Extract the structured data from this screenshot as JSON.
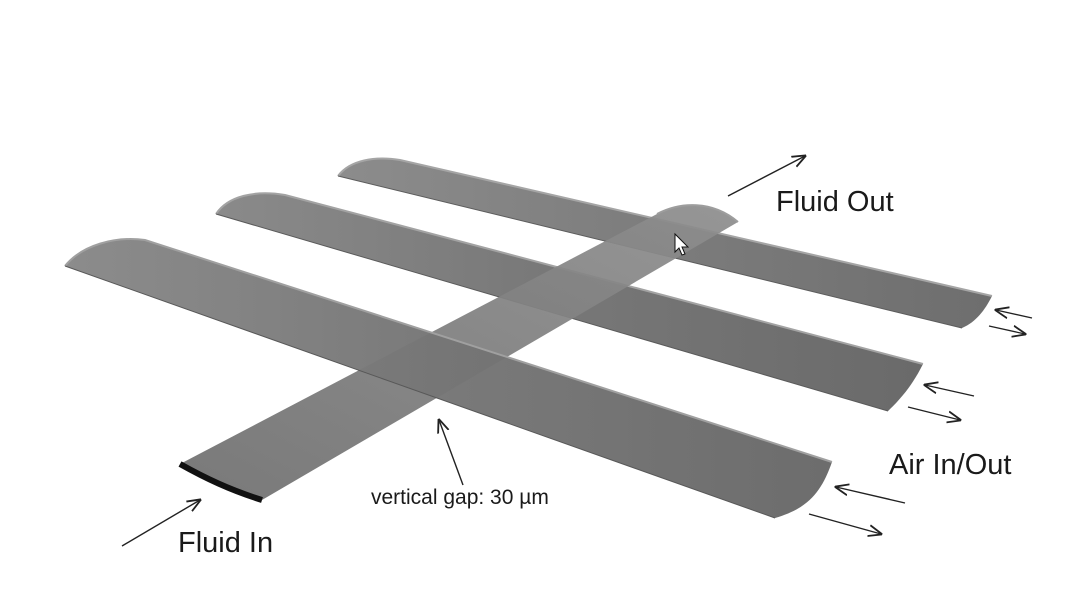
{
  "labels": {
    "fluid_out": "Fluid Out",
    "air_in_out": "Air In/Out",
    "fluid_in": "Fluid In",
    "vertical_gap": "vertical gap: 30 µm"
  },
  "colors": {
    "background": "#ffffff",
    "channel_fill": "#7a7a7a",
    "channel_light": "#9a9a9a",
    "channel_dark": "#555555",
    "arrow": "#222222",
    "text": "#1a1a1a"
  },
  "icons": {
    "cursor": "mouse-pointer-icon"
  }
}
